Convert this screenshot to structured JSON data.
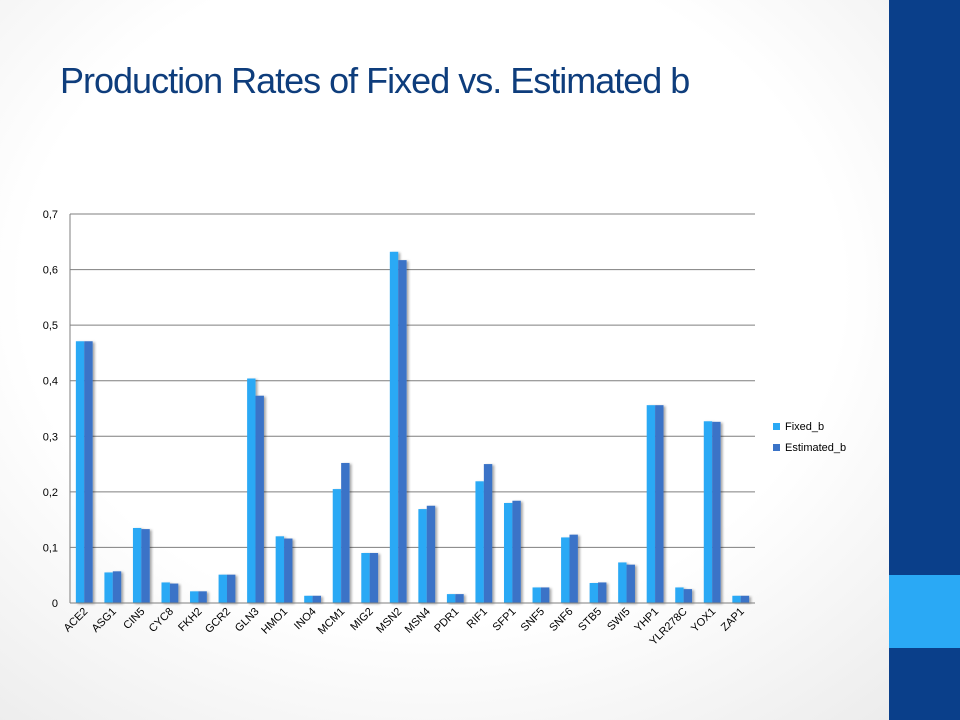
{
  "title": "Production Rates of Fixed vs. Estimated b",
  "colors": {
    "sidebar": "#0a3f8a",
    "accent": "#2aa9f5",
    "title": "#0e3d7c"
  },
  "chart_data": {
    "type": "bar",
    "categories": [
      "ACE2",
      "ASG1",
      "CIN5",
      "CYC8",
      "FKH2",
      "GCR2",
      "GLN3",
      "HMO1",
      "INO4",
      "MCM1",
      "MIG2",
      "MSN2",
      "MSN4",
      "PDR1",
      "RIF1",
      "SFP1",
      "SNF5",
      "SNF6",
      "STB5",
      "SWI5",
      "YHP1",
      "YLR278C",
      "YOX1",
      "ZAP1"
    ],
    "series": [
      {
        "name": "Fixed_b",
        "color": "#2aa9f5",
        "values": [
          0.471,
          0.055,
          0.135,
          0.037,
          0.021,
          0.051,
          0.404,
          0.12,
          0.013,
          0.205,
          0.09,
          0.632,
          0.169,
          0.016,
          0.219,
          0.18,
          0.028,
          0.118,
          0.036,
          0.073,
          0.356,
          0.028,
          0.327,
          0.013
        ]
      },
      {
        "name": "Estimated_b",
        "color": "#3a73c7",
        "values": [
          0.471,
          0.057,
          0.133,
          0.035,
          0.021,
          0.051,
          0.373,
          0.116,
          0.013,
          0.252,
          0.09,
          0.617,
          0.175,
          0.016,
          0.25,
          0.184,
          0.028,
          0.123,
          0.037,
          0.069,
          0.356,
          0.025,
          0.326,
          0.013
        ]
      }
    ],
    "ylim": [
      0,
      0.7
    ],
    "yticks": [
      "0",
      "0,1",
      "0,2",
      "0,3",
      "0,4",
      "0,5",
      "0,6",
      "0,7"
    ],
    "grid": true,
    "legend_position": "right"
  }
}
